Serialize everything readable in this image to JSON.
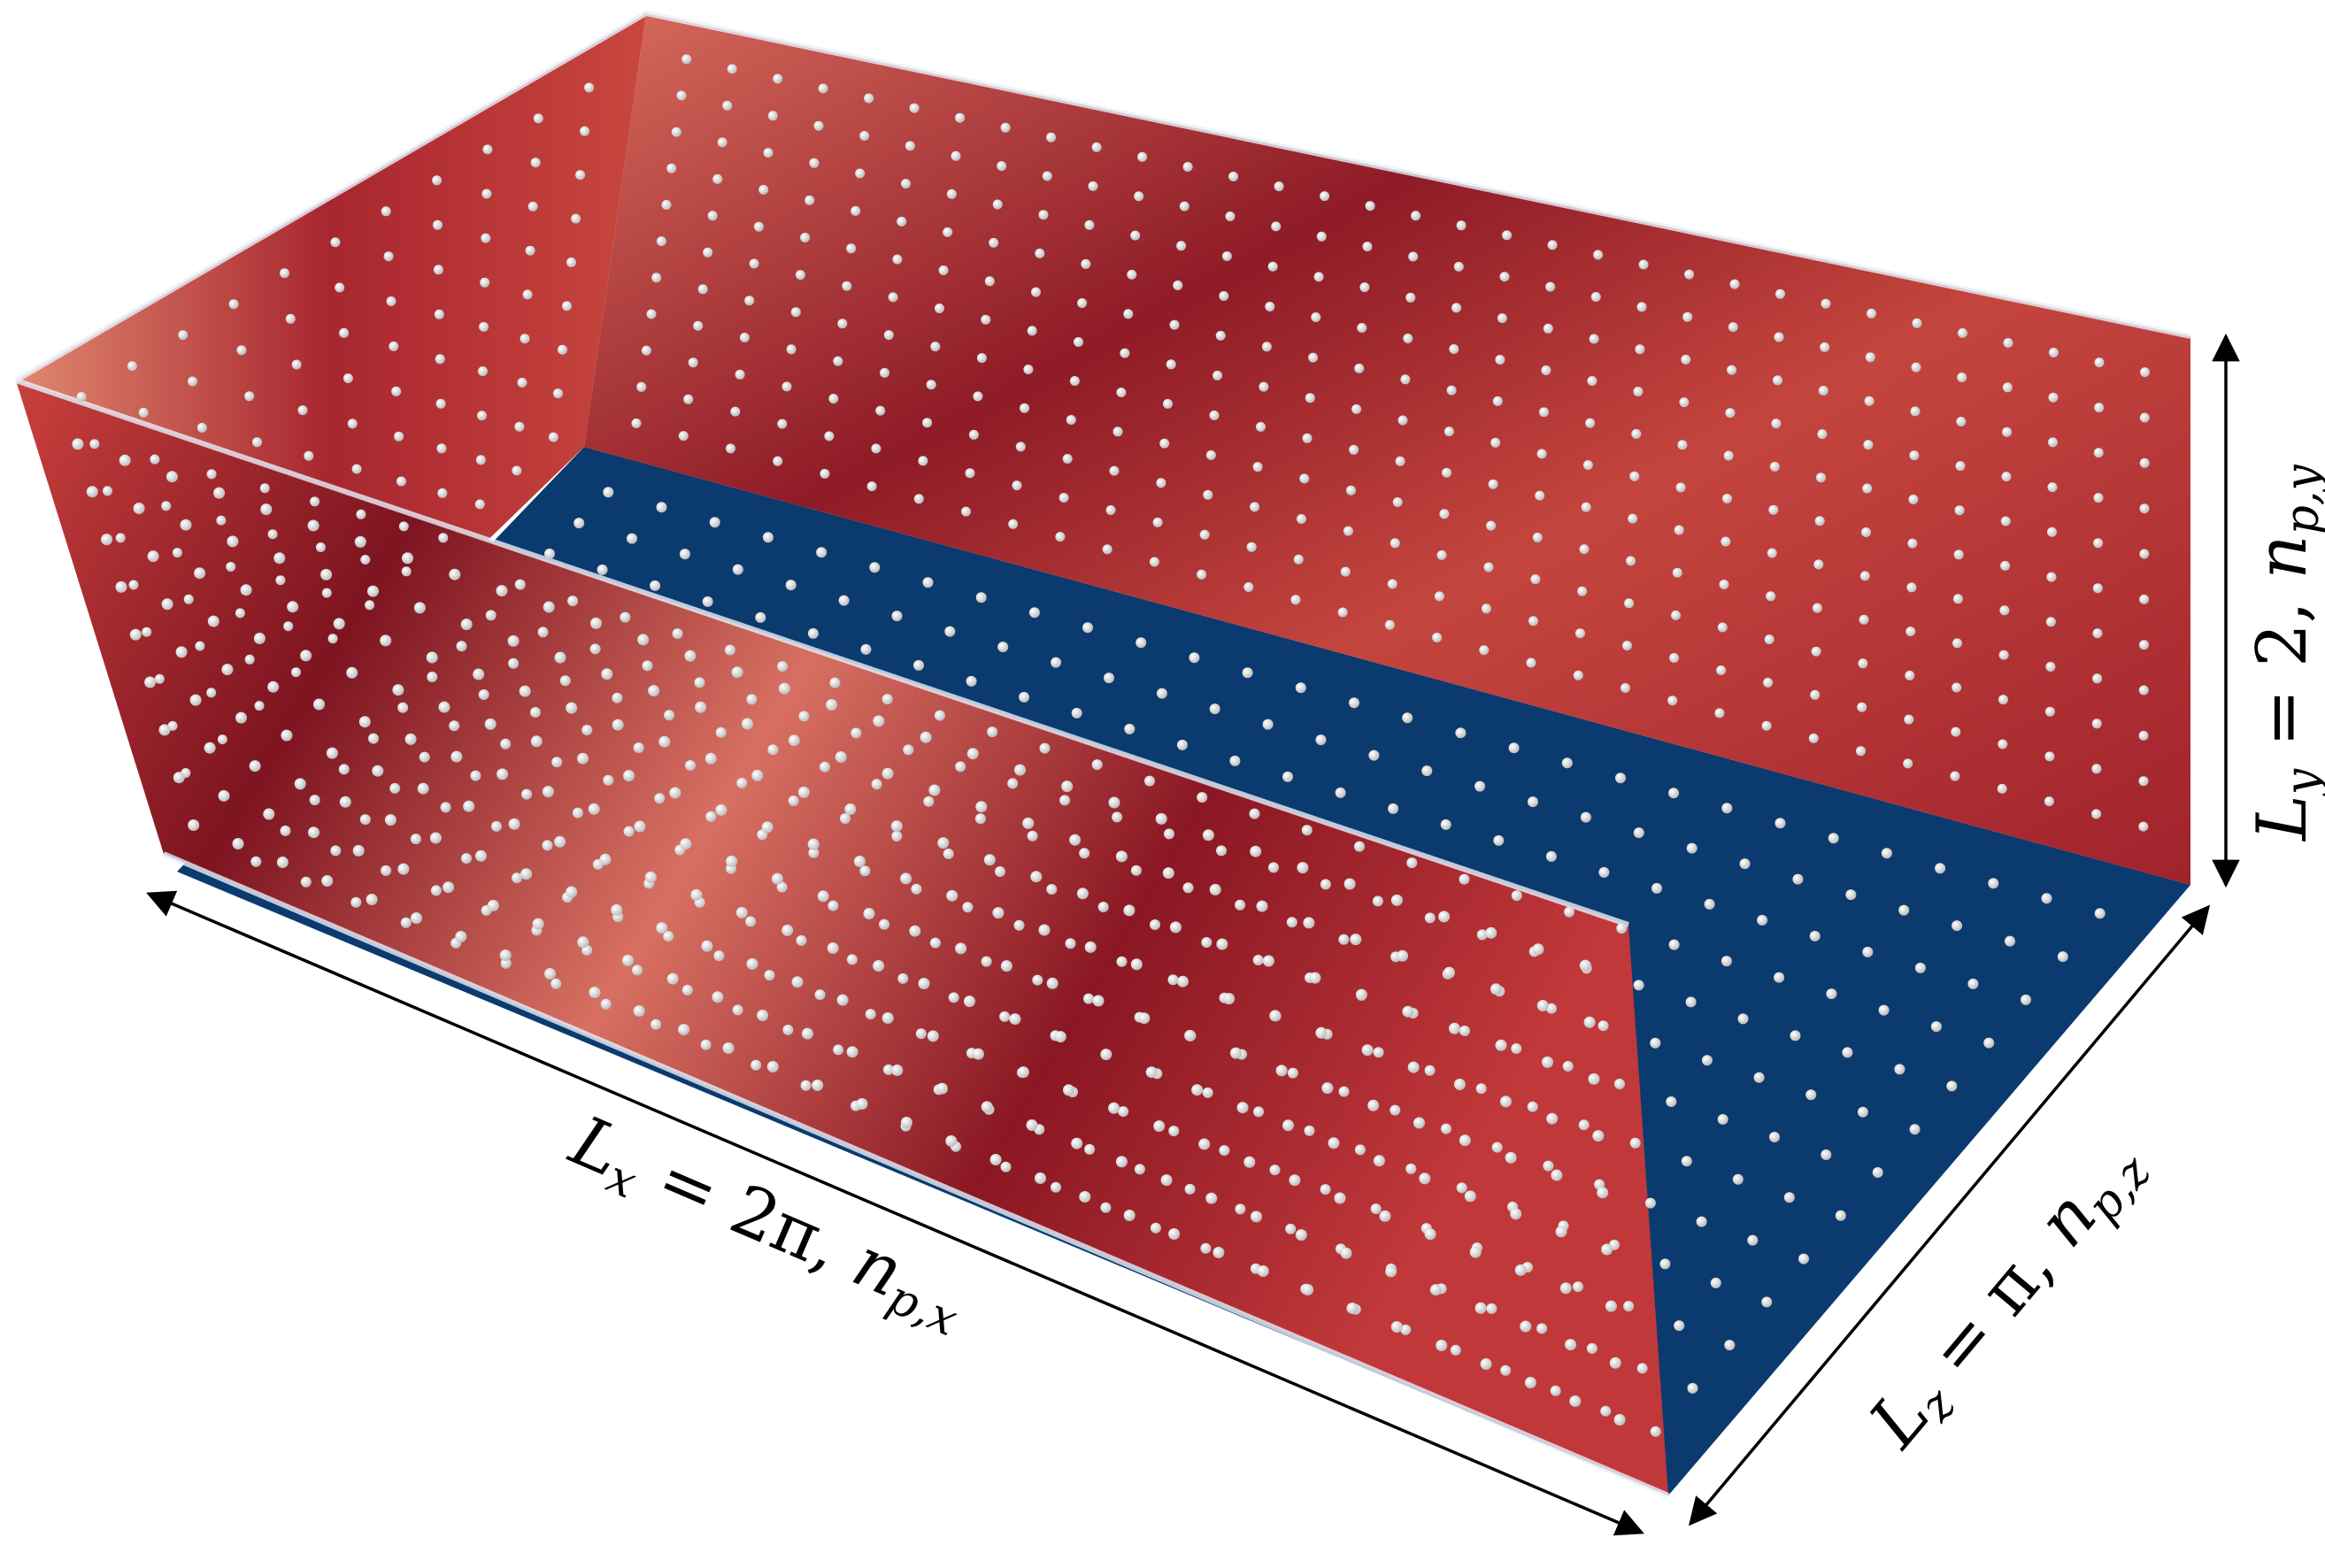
{
  "labels": {
    "lx": {
      "symbol": "L",
      "sub": "x",
      "eq": " = 2π, ",
      "n": "n",
      "nsub": "p,x"
    },
    "ly": {
      "symbol": "L",
      "sub": "y",
      "eq": " = 2, ",
      "n": "n",
      "nsub": "p,y"
    },
    "lz": {
      "symbol": "L",
      "sub": "z",
      "eq": " = π, ",
      "n": "n",
      "nsub": "p,z"
    }
  },
  "colors": {
    "field_dark": "#7a0f1c",
    "field_mid": "#b8303a",
    "field_light": "#e9a08a",
    "wall_blue": "#0b3a6e",
    "particle": "#f2f2f2",
    "edge_highlight": "#e7f0fa"
  }
}
